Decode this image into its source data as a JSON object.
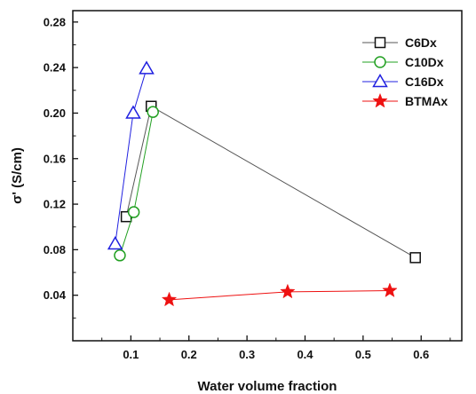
{
  "chart_data": {
    "type": "scatter",
    "title": "",
    "xlabel": "Water volume fraction",
    "ylabel": "σ' (S/cm)",
    "xlim": [
      0.0,
      0.67
    ],
    "ylim": [
      0.0,
      0.29
    ],
    "xticks": [
      0.1,
      0.2,
      0.3,
      0.4,
      0.5,
      0.6
    ],
    "xtick_labels": [
      "0.1",
      "0.2",
      "0.3",
      "0.4",
      "0.5",
      "0.6"
    ],
    "yticks": [
      0.04,
      0.08,
      0.12,
      0.16,
      0.2,
      0.24,
      0.28
    ],
    "ytick_labels": [
      "0.04",
      "0.08",
      "0.12",
      "0.16",
      "0.20",
      "0.24",
      "0.28"
    ],
    "grid": false,
    "legend_position": "top-right",
    "series": [
      {
        "name": "C6Dx",
        "marker": "square",
        "color": "#111111",
        "line_color": "#555555",
        "x": [
          0.092,
          0.135,
          0.59
        ],
        "y": [
          0.109,
          0.206,
          0.073
        ]
      },
      {
        "name": "C10Dx",
        "marker": "circle",
        "color": "#22a022",
        "line_color": "#22a022",
        "x": [
          0.081,
          0.105,
          0.138
        ],
        "y": [
          0.075,
          0.113,
          0.201
        ]
      },
      {
        "name": "C16Dx",
        "marker": "triangle",
        "color": "#2020e0",
        "line_color": "#2020e0",
        "x": [
          0.073,
          0.104,
          0.127
        ],
        "y": [
          0.085,
          0.2,
          0.239
        ]
      },
      {
        "name": "BTMAx",
        "marker": "star",
        "color": "#ee1111",
        "line_color": "#ee1111",
        "x": [
          0.166,
          0.37,
          0.546
        ],
        "y": [
          0.036,
          0.043,
          0.044
        ]
      }
    ]
  }
}
